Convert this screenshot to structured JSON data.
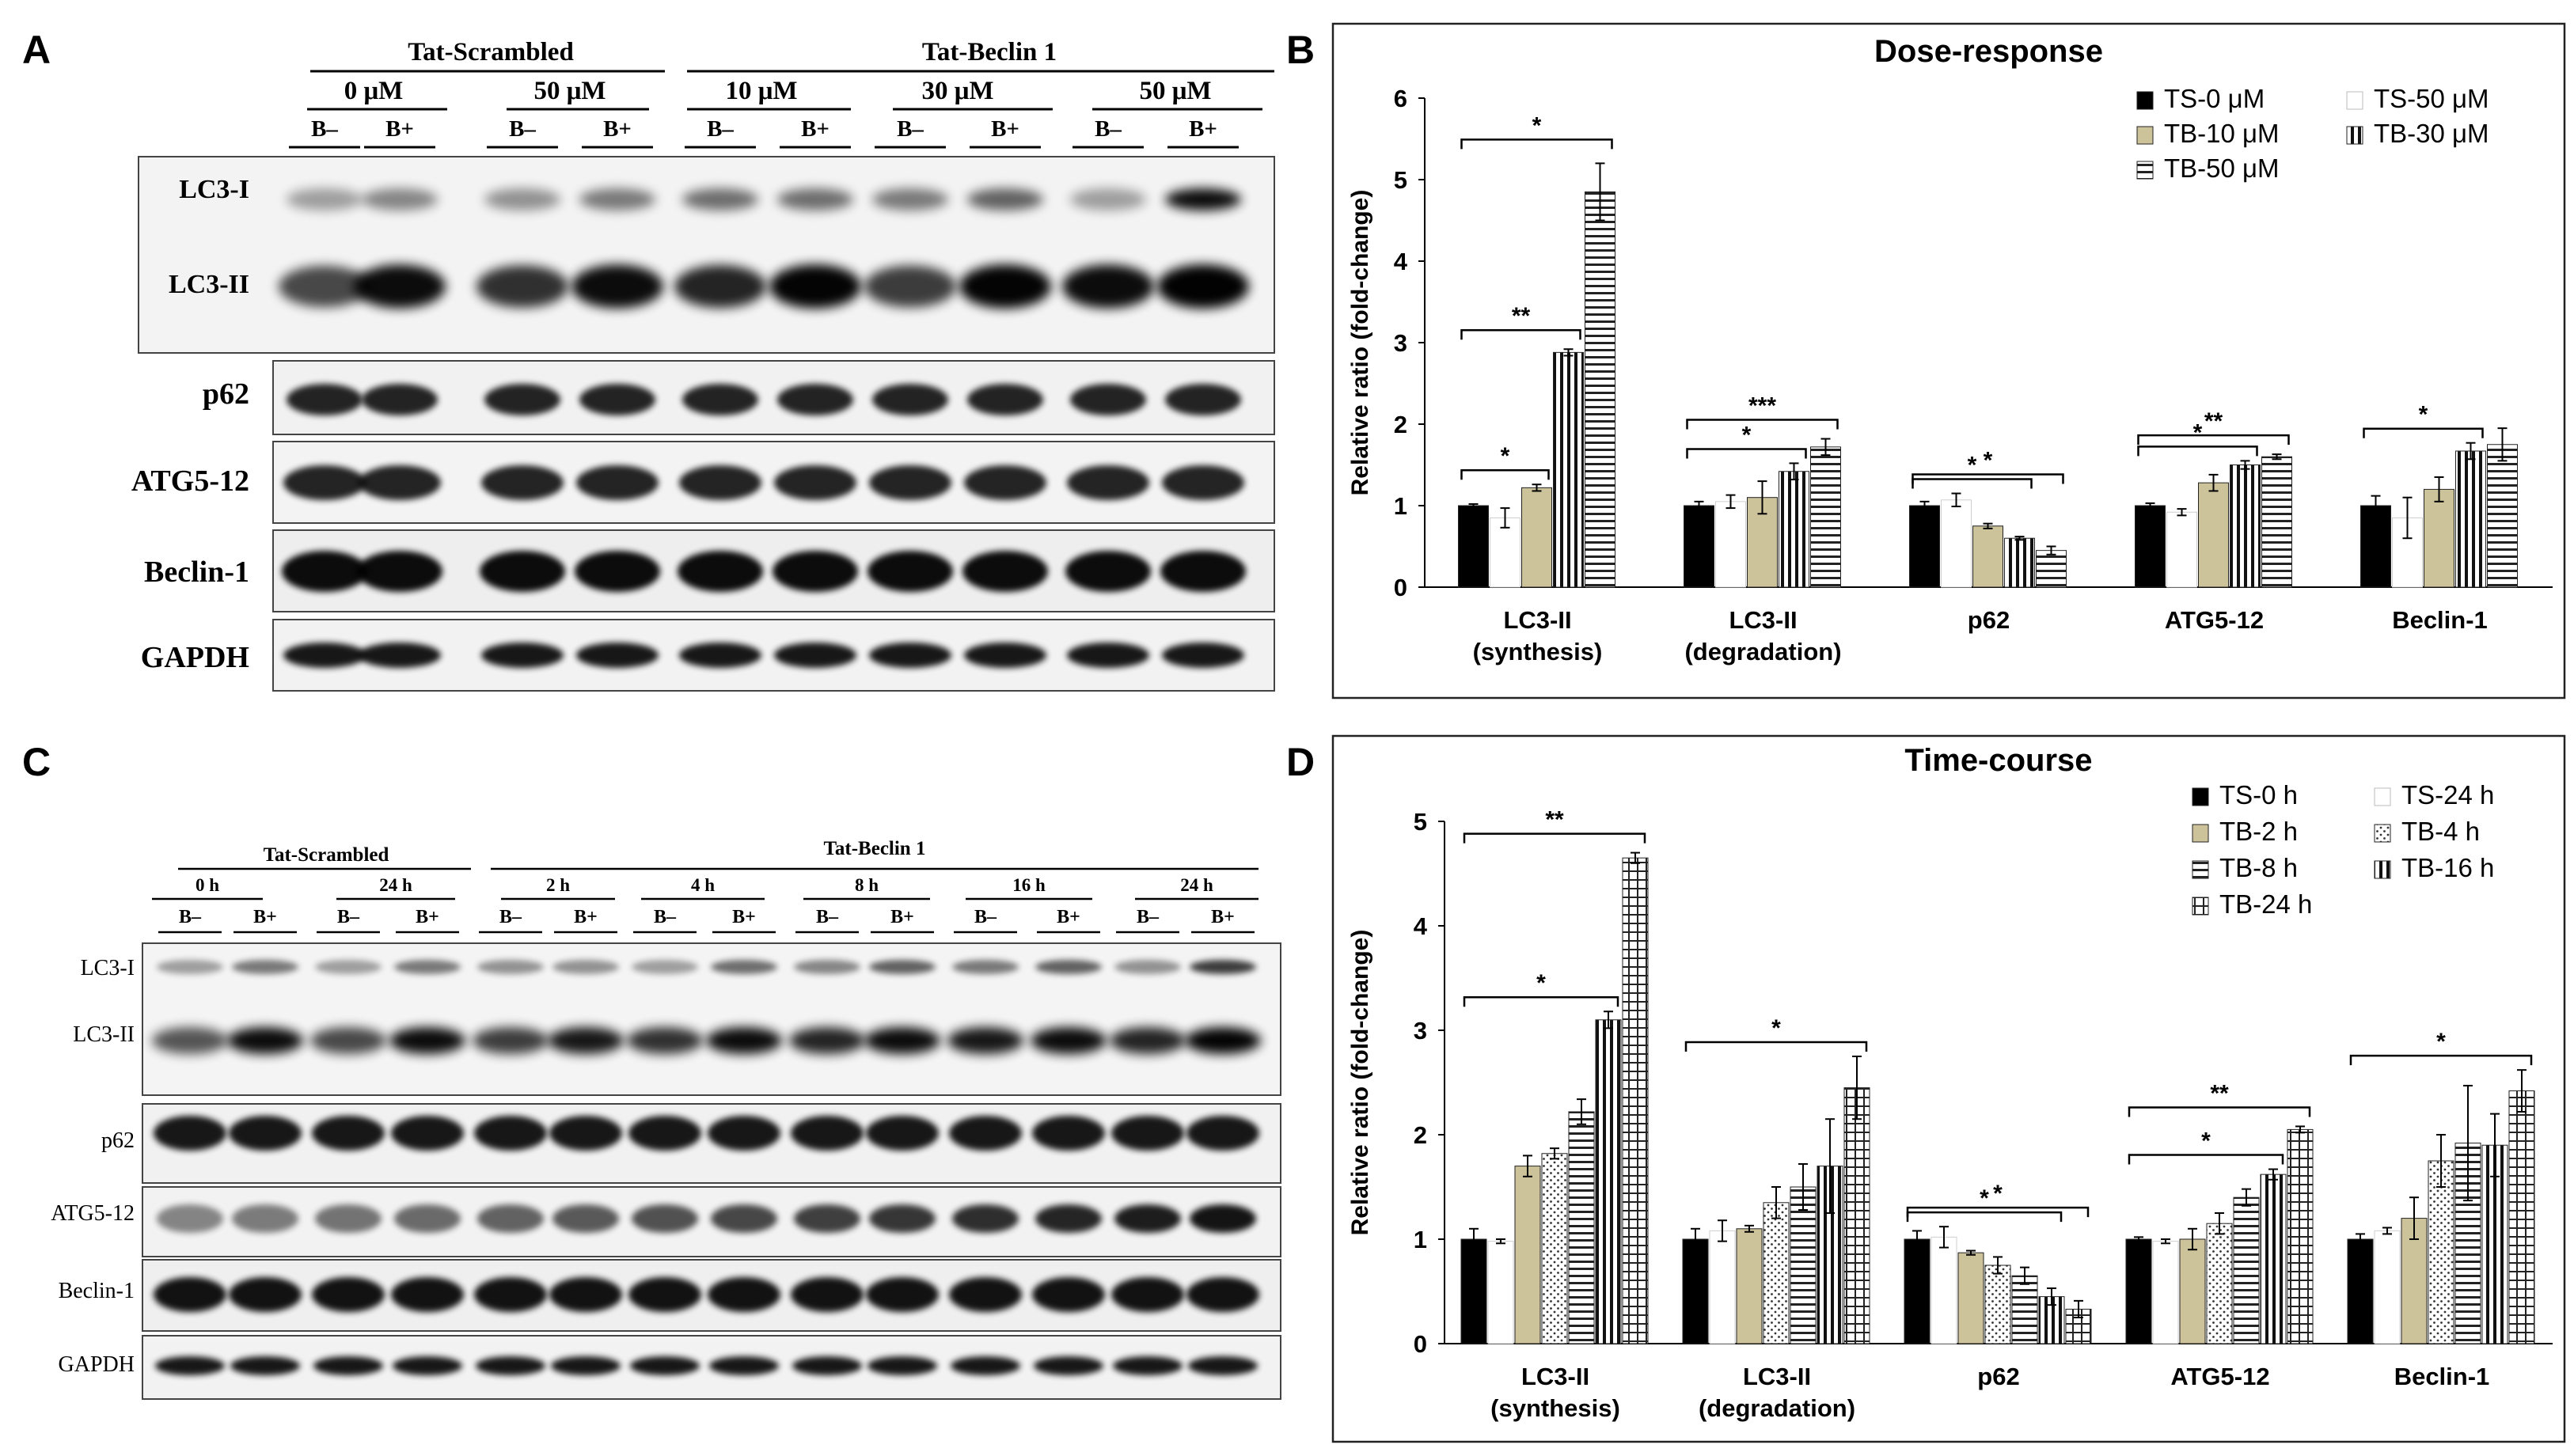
{
  "panels": {
    "A": {
      "letter": "A",
      "group_labels": [
        "Tat-Scrambled",
        "Tat-Beclin 1"
      ],
      "dose_labels": [
        "0 μM",
        "50 μM",
        "10 μM",
        "30 μM",
        "50 μM"
      ],
      "lane_labels": [
        "B–",
        "B+",
        "B–",
        "B+",
        "B–",
        "B+",
        "B–",
        "B+",
        "B–",
        "B+"
      ],
      "blot_labels": [
        "LC3-I",
        "LC3-II",
        "p62",
        "ATG5-12",
        "Beclin-1",
        "GAPDH"
      ]
    },
    "B": {
      "letter": "B"
    },
    "C": {
      "letter": "C",
      "group_labels": [
        "Tat-Scrambled",
        "Tat-Beclin 1"
      ],
      "time_labels": [
        "0  h",
        "24  h",
        "2 h",
        "4 h",
        "8 h",
        "16 h",
        "24 h"
      ],
      "lane_labels": [
        "B–",
        "B+",
        "B–",
        "B+",
        "B–",
        "B+",
        "B–",
        "B+",
        "B–",
        "B+",
        "B–",
        "B+",
        "B–",
        "B+"
      ],
      "blot_labels": [
        "LC3-I",
        "LC3-II",
        "p62",
        "ATG5-12",
        "Beclin-1",
        "GAPDH"
      ]
    },
    "D": {
      "letter": "D"
    }
  },
  "chart_data": [
    {
      "type": "bar",
      "title": "Dose-response",
      "ylabel": "Relative ratio (fold-change)",
      "ylim": [
        0,
        6
      ],
      "yticks": [
        0,
        1,
        2,
        3,
        4,
        5,
        6
      ],
      "categories": [
        "LC3-II\n(synthesis)",
        "LC3-II\n(degradation)",
        "p62",
        "ATG5-12",
        "Beclin-1"
      ],
      "legend_position": "top-right",
      "series": [
        {
          "name": "TS-0 μM",
          "pattern": "solid",
          "values": [
            1.0,
            1.0,
            1.0,
            1.0,
            1.0
          ],
          "errors": [
            0.02,
            0.05,
            0.05,
            0.03,
            0.12
          ]
        },
        {
          "name": "TS-50 μM",
          "pattern": "white",
          "values": [
            0.85,
            1.05,
            1.07,
            0.92,
            0.85
          ],
          "errors": [
            0.12,
            0.08,
            0.08,
            0.04,
            0.25
          ]
        },
        {
          "name": "TB-10 μM",
          "pattern": "beige",
          "values": [
            1.22,
            1.1,
            0.75,
            1.28,
            1.2
          ],
          "errors": [
            0.04,
            0.2,
            0.03,
            0.1,
            0.15
          ]
        },
        {
          "name": "TB-30 μM",
          "pattern": "vlines",
          "values": [
            2.88,
            1.42,
            0.6,
            1.5,
            1.67
          ],
          "errors": [
            0.04,
            0.1,
            0.02,
            0.05,
            0.1
          ]
        },
        {
          "name": "TB-50 μM",
          "pattern": "hlines",
          "values": [
            4.85,
            1.72,
            0.45,
            1.6,
            1.75
          ],
          "errors": [
            0.35,
            0.1,
            0.05,
            0.03,
            0.2
          ]
        }
      ],
      "significance": [
        {
          "category": 0,
          "from": 0,
          "to": 2,
          "label": "*"
        },
        {
          "category": 0,
          "from": 0,
          "to": 3,
          "label": "**"
        },
        {
          "category": 0,
          "from": 0,
          "to": 4,
          "label": "*"
        },
        {
          "category": 1,
          "from": 0,
          "to": 3,
          "label": "*"
        },
        {
          "category": 1,
          "from": 0,
          "to": 4,
          "label": "***"
        },
        {
          "category": 2,
          "from": 0,
          "to": 3,
          "label": "*"
        },
        {
          "category": 2,
          "from": 0,
          "to": 4,
          "label": "*"
        },
        {
          "category": 3,
          "from": 0,
          "to": 3,
          "label": "*"
        },
        {
          "category": 3,
          "from": 0,
          "to": 4,
          "label": "**"
        },
        {
          "category": 4,
          "from": 0,
          "to": 3,
          "label": "*"
        }
      ]
    },
    {
      "type": "bar",
      "title": "Time-course",
      "ylabel": "Relative ratio (fold-change)",
      "ylim": [
        0,
        5
      ],
      "yticks": [
        0,
        1,
        2,
        3,
        4,
        5
      ],
      "categories": [
        "LC3-II\n(synthesis)",
        "LC3-II\n(degradation)",
        "p62",
        "ATG5-12",
        "Beclin-1"
      ],
      "legend_position": "top-right",
      "series": [
        {
          "name": "TS-0 h",
          "pattern": "solid",
          "values": [
            1.0,
            1.0,
            1.0,
            1.0,
            1.0
          ],
          "errors": [
            0.1,
            0.1,
            0.08,
            0.02,
            0.05
          ]
        },
        {
          "name": "TS-24 h",
          "pattern": "white",
          "values": [
            0.98,
            1.08,
            1.02,
            0.98,
            1.08
          ],
          "errors": [
            0.02,
            0.1,
            0.1,
            0.02,
            0.03
          ]
        },
        {
          "name": "TB-2 h",
          "pattern": "beige",
          "values": [
            1.7,
            1.1,
            0.87,
            1.0,
            1.2
          ],
          "errors": [
            0.1,
            0.03,
            0.02,
            0.1,
            0.2
          ]
        },
        {
          "name": "TB-4 h",
          "pattern": "dots",
          "values": [
            1.82,
            1.35,
            0.75,
            1.15,
            1.75
          ],
          "errors": [
            0.05,
            0.15,
            0.08,
            0.1,
            0.25
          ]
        },
        {
          "name": "TB-8 h",
          "pattern": "hlines",
          "values": [
            2.22,
            1.5,
            0.65,
            1.4,
            1.92
          ],
          "errors": [
            0.12,
            0.22,
            0.08,
            0.08,
            0.55
          ]
        },
        {
          "name": "TB-16 h",
          "pattern": "vlines",
          "values": [
            3.1,
            1.7,
            0.45,
            1.62,
            1.9
          ],
          "errors": [
            0.08,
            0.45,
            0.08,
            0.05,
            0.3
          ]
        },
        {
          "name": "TB-24 h",
          "pattern": "grid",
          "values": [
            4.65,
            2.45,
            0.33,
            2.05,
            2.42
          ],
          "errors": [
            0.05,
            0.3,
            0.08,
            0.03,
            0.2
          ]
        }
      ],
      "significance": [
        {
          "category": 0,
          "from": 0,
          "to": 5,
          "label": "*"
        },
        {
          "category": 0,
          "from": 0,
          "to": 6,
          "label": "**"
        },
        {
          "category": 1,
          "from": 0,
          "to": 6,
          "label": "*"
        },
        {
          "category": 2,
          "from": 0,
          "to": 5,
          "label": "*"
        },
        {
          "category": 2,
          "from": 0,
          "to": 6,
          "label": "*"
        },
        {
          "category": 3,
          "from": 0,
          "to": 5,
          "label": "*"
        },
        {
          "category": 3,
          "from": 0,
          "to": 6,
          "label": "**"
        },
        {
          "category": 4,
          "from": 0,
          "to": 6,
          "label": "*"
        }
      ]
    }
  ]
}
